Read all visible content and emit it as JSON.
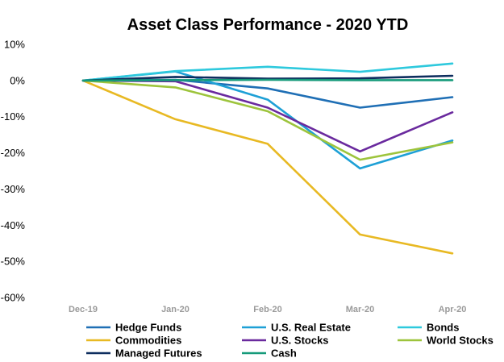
{
  "chart_data": {
    "type": "line",
    "title": "Asset Class Performance - 2020 YTD",
    "xlabel": "",
    "ylabel": "",
    "categories": [
      "Dec-19",
      "Jan-20",
      "Feb-20",
      "Mar-20",
      "Apr-20"
    ],
    "y_ticks": [
      "10%",
      "0%",
      "-10%",
      "-20%",
      "-30%",
      "-40%",
      "-50%",
      "-60%"
    ],
    "ylim": [
      -60,
      10
    ],
    "grid": false,
    "legend_position": "bottom",
    "series": [
      {
        "name": "Hedge Funds",
        "color": "#1f6fb5",
        "values": [
          0,
          0.2,
          -2.2,
          -7.5,
          -4.6
        ]
      },
      {
        "name": "U.S. Real Estate",
        "color": "#1ea0d6",
        "values": [
          0,
          2.5,
          -5.3,
          -24.3,
          -16.6
        ]
      },
      {
        "name": "Bonds",
        "color": "#2ec9dd",
        "values": [
          0,
          2.6,
          3.8,
          2.4,
          4.7
        ]
      },
      {
        "name": "Commodities",
        "color": "#e8b923",
        "values": [
          0,
          -10.7,
          -17.5,
          -42.6,
          -47.8
        ]
      },
      {
        "name": "U.S. Stocks",
        "color": "#6a2a9e",
        "values": [
          0,
          -0.2,
          -7.5,
          -19.6,
          -8.8
        ]
      },
      {
        "name": "World Stocks",
        "color": "#9dc43c",
        "values": [
          0,
          -1.9,
          -8.5,
          -21.9,
          -17.1
        ]
      },
      {
        "name": "Managed Futures",
        "color": "#0d2d5e",
        "values": [
          0,
          1.0,
          0.5,
          0.6,
          1.3
        ]
      },
      {
        "name": "Cash",
        "color": "#159a7a",
        "values": [
          0,
          0.1,
          0.2,
          0.1,
          0.1
        ]
      }
    ]
  }
}
